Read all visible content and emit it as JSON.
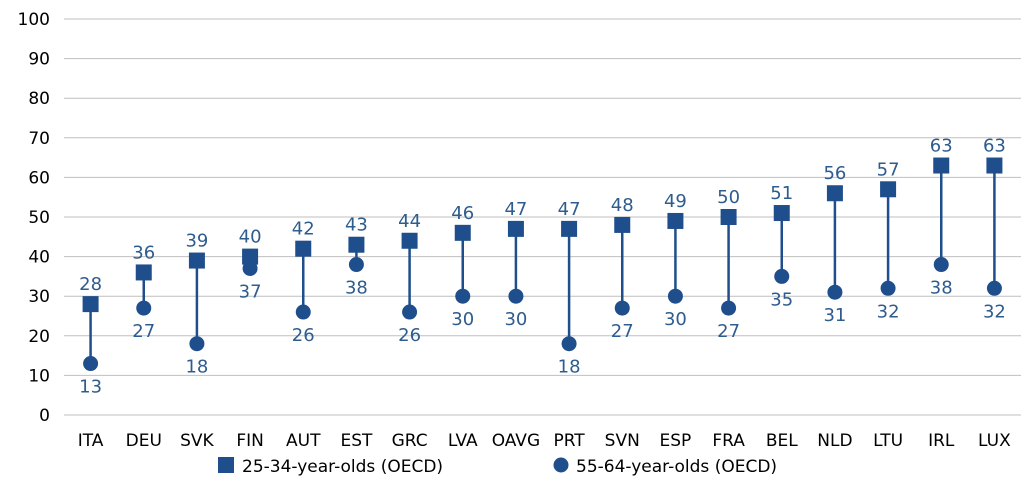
{
  "chart_data": {
    "type": "dot-range",
    "categories": [
      "ITA",
      "DEU",
      "SVK",
      "FIN",
      "AUT",
      "EST",
      "GRC",
      "LVA",
      "OAVG",
      "PRT",
      "SVN",
      "ESP",
      "FRA",
      "BEL",
      "NLD",
      "LTU",
      "IRL",
      "LUX"
    ],
    "series": [
      {
        "name": "25-34-year-olds (OECD)",
        "marker": "square",
        "values": [
          28,
          36,
          39,
          40,
          42,
          43,
          44,
          46,
          47,
          47,
          48,
          49,
          50,
          51,
          56,
          57,
          63,
          63
        ]
      },
      {
        "name": "55-64-year-olds (OECD)",
        "marker": "circle",
        "values": [
          13,
          27,
          18,
          37,
          26,
          38,
          26,
          30,
          30,
          18,
          27,
          30,
          27,
          35,
          31,
          32,
          38,
          32
        ]
      }
    ],
    "ylim": [
      0,
      100
    ],
    "yticks": [
      0,
      10,
      20,
      30,
      40,
      50,
      60,
      70,
      80,
      90,
      100
    ],
    "grid": true,
    "legend_position": "bottom",
    "colors": {
      "marker": "#1f4e8c",
      "label": "#2e5c8e",
      "grid": "#bfbfbf"
    }
  }
}
